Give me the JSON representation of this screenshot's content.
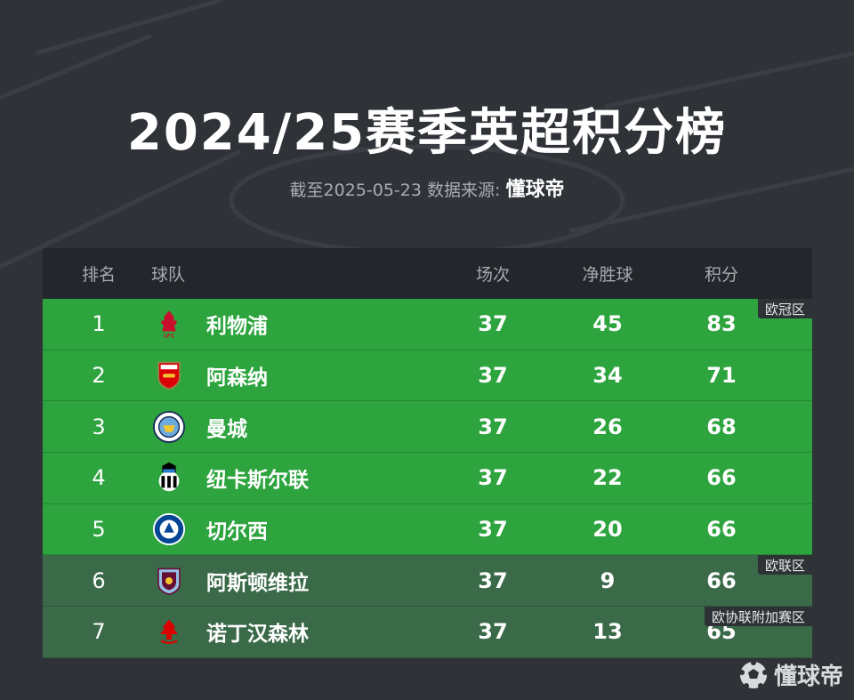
{
  "header": {
    "title": "2024/25赛季英超积分榜",
    "subtitle_prefix": "截至2025-05-23 数据来源: ",
    "subtitle_brand": "懂球帝"
  },
  "table": {
    "columns": {
      "rank": "排名",
      "team": "球队",
      "played": "场次",
      "gd": "净胜球",
      "points": "积分"
    },
    "rows": [
      {
        "rank": "1",
        "team": "利物浦",
        "badge": "liverpool-badge-icon",
        "played": "37",
        "gd": "45",
        "points": "83",
        "zone": "ucl",
        "zone_label": "欧冠区"
      },
      {
        "rank": "2",
        "team": "阿森纳",
        "badge": "arsenal-badge-icon",
        "played": "37",
        "gd": "34",
        "points": "71",
        "zone": "ucl",
        "zone_label": ""
      },
      {
        "rank": "3",
        "team": "曼城",
        "badge": "man-city-badge-icon",
        "played": "37",
        "gd": "26",
        "points": "68",
        "zone": "ucl",
        "zone_label": ""
      },
      {
        "rank": "4",
        "team": "纽卡斯尔联",
        "badge": "newcastle-badge-icon",
        "played": "37",
        "gd": "22",
        "points": "66",
        "zone": "ucl",
        "zone_label": ""
      },
      {
        "rank": "5",
        "team": "切尔西",
        "badge": "chelsea-badge-icon",
        "played": "37",
        "gd": "20",
        "points": "66",
        "zone": "ucl",
        "zone_label": ""
      },
      {
        "rank": "6",
        "team": "阿斯顿维拉",
        "badge": "aston-villa-badge-icon",
        "played": "37",
        "gd": "9",
        "points": "66",
        "zone": "uel",
        "zone_label": "欧联区"
      },
      {
        "rank": "7",
        "team": "诺丁汉森林",
        "badge": "nottingham-forest-badge-icon",
        "played": "37",
        "gd": "13",
        "points": "65",
        "zone": "uel",
        "zone_label": "欧协联附加赛区"
      }
    ]
  },
  "colors": {
    "background": "#2f3338",
    "header_row": "#23272b",
    "ucl_row": "#2da43e",
    "uel_row": "#3a6a48"
  },
  "watermark": {
    "text": "懂球帝",
    "icon": "football-logo-icon"
  }
}
